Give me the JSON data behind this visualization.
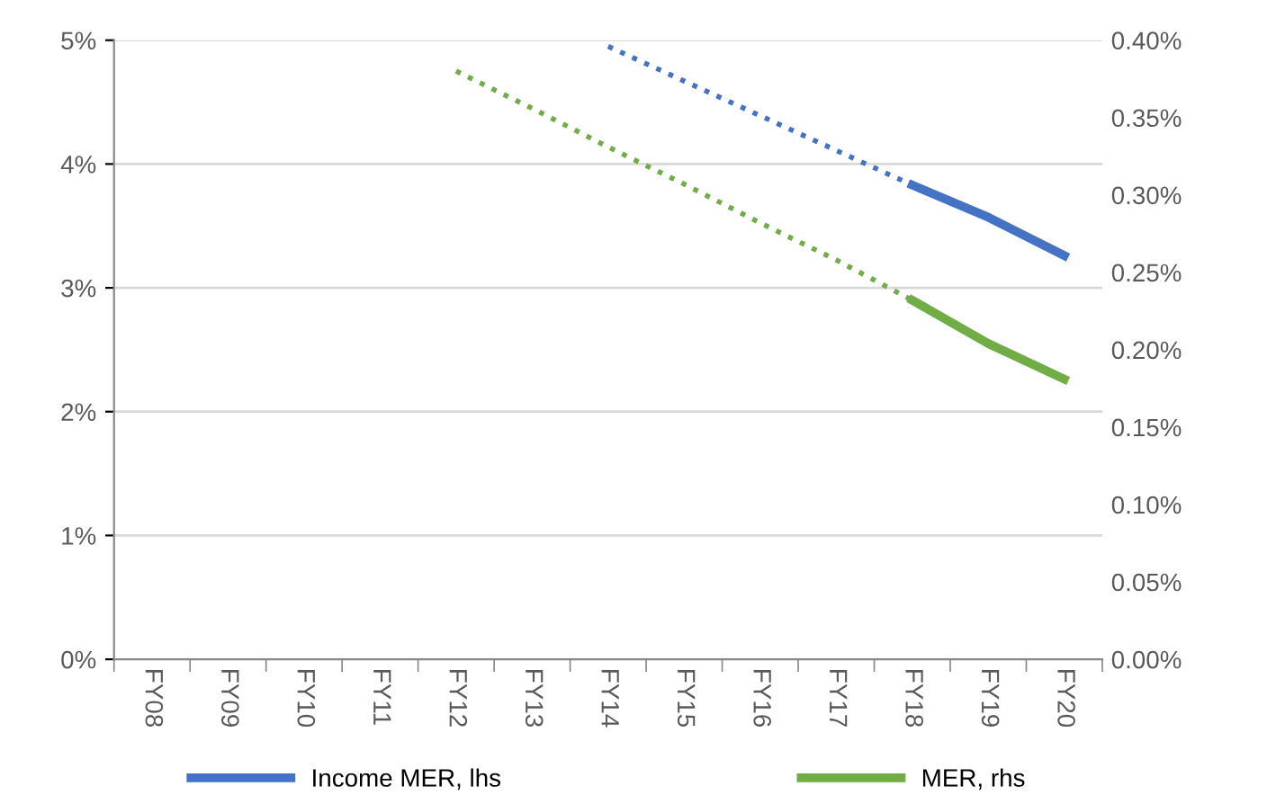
{
  "chart_data": {
    "type": "line",
    "categories": [
      "FY08",
      "FY09",
      "FY10",
      "FY11",
      "FY12",
      "FY13",
      "FY14",
      "FY15",
      "FY16",
      "FY17",
      "FY18",
      "FY19",
      "FY20"
    ],
    "series": [
      {
        "color": "#4472c4",
        "line_style": "dotted",
        "values": [
          null,
          null,
          null,
          null,
          null,
          null,
          4.95,
          4.67,
          4.39,
          4.11,
          3.83,
          null,
          null
        ]
      },
      {
        "color": "#70ad47",
        "line_style": "dotted",
        "axis": "y2",
        "values": [
          null,
          null,
          null,
          null,
          0.38,
          0.356,
          0.331,
          0.307,
          0.282,
          0.258,
          0.232,
          null,
          null
        ]
      },
      {
        "name": "Income MER, lhs",
        "color": "#4472c4",
        "line_style": "solid",
        "values": [
          null,
          null,
          null,
          null,
          null,
          null,
          null,
          null,
          null,
          null,
          3.83,
          3.57,
          3.26
        ]
      },
      {
        "name": "MER, rhs",
        "color": "#70ad47",
        "line_style": "solid",
        "axis": "y2",
        "values": [
          null,
          null,
          null,
          null,
          null,
          null,
          null,
          null,
          null,
          null,
          0.232,
          0.204,
          0.181
        ]
      }
    ],
    "ylim": [
      0,
      5
    ],
    "yticks": [
      {
        "value": 0,
        "label": "0%"
      },
      {
        "value": 1,
        "label": "1%"
      },
      {
        "value": 2,
        "label": "2%"
      },
      {
        "value": 3,
        "label": "3%"
      },
      {
        "value": 4,
        "label": "4%"
      },
      {
        "value": 5,
        "label": "5%"
      }
    ],
    "y2lim": [
      0,
      0.4
    ],
    "y2ticks": [
      {
        "value": 0,
        "label": "0.00%"
      },
      {
        "value": 0.05,
        "label": "0.05%"
      },
      {
        "value": 0.1,
        "label": "0.10%"
      },
      {
        "value": 0.15,
        "label": "0.15%"
      },
      {
        "value": 0.2,
        "label": "0.20%"
      },
      {
        "value": 0.25,
        "label": "0.25%"
      },
      {
        "value": 0.3,
        "label": "0.30%"
      },
      {
        "value": 0.35,
        "label": "0.35%"
      },
      {
        "value": 0.4,
        "label": "0.40%"
      }
    ],
    "grid": "y",
    "legend": "bottom"
  }
}
